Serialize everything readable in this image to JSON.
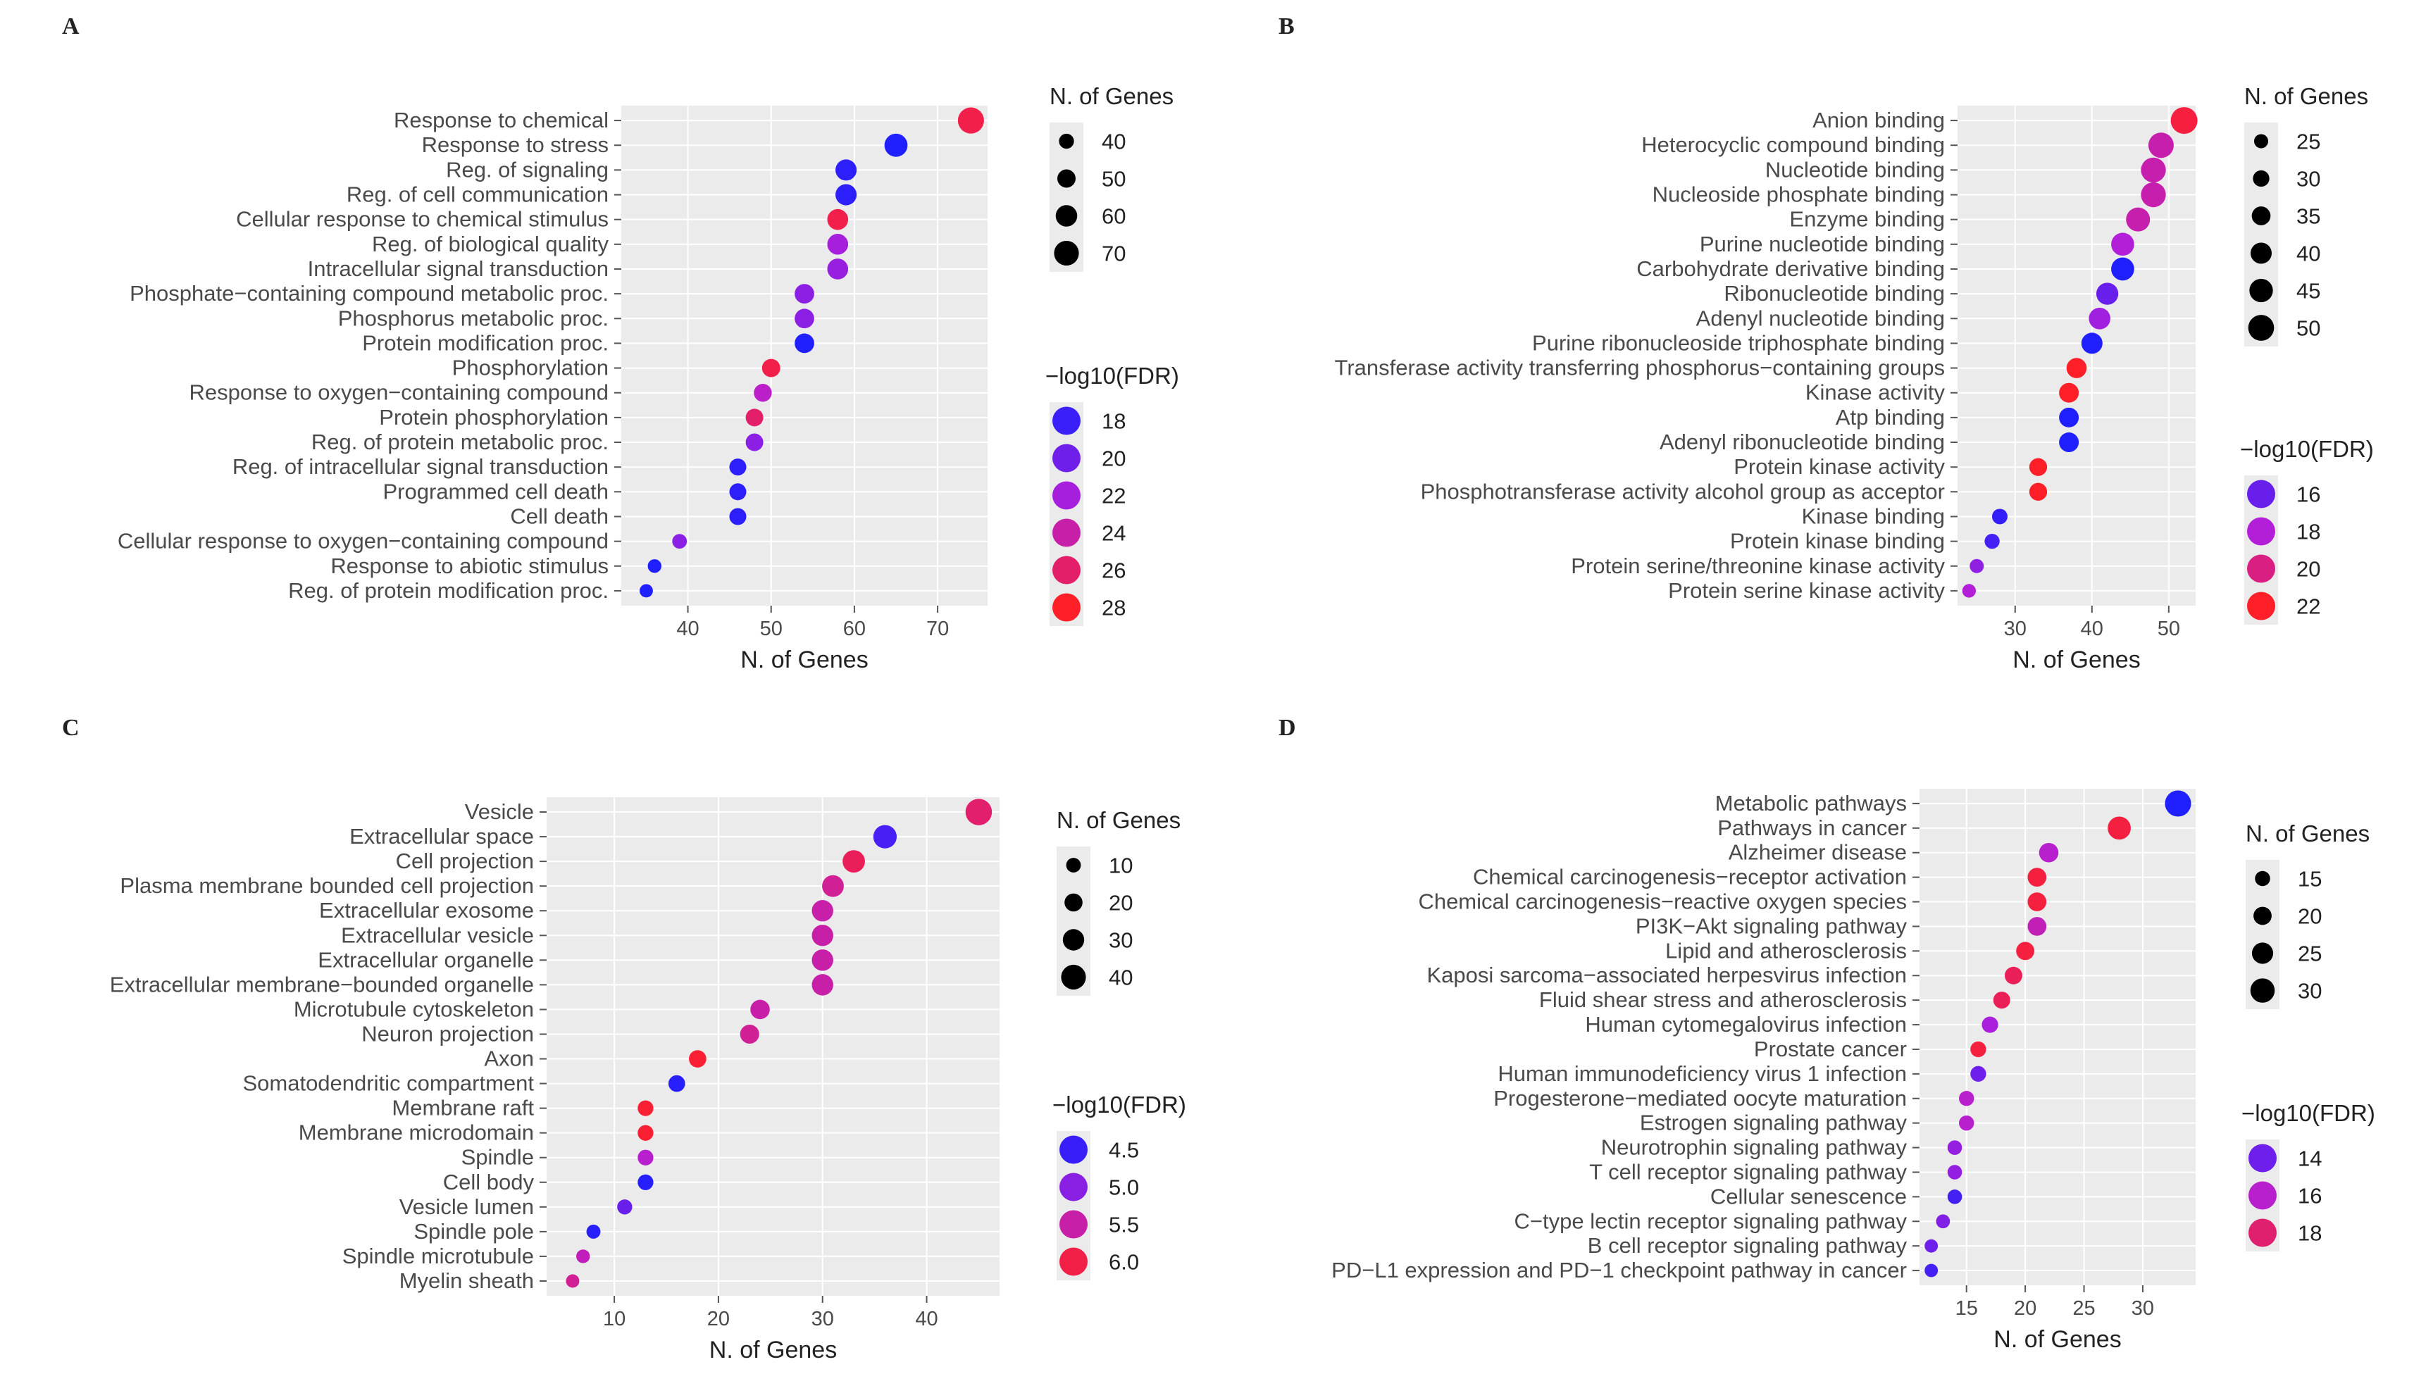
{
  "figure": {
    "legend_titles": {
      "size": "N. of Genes",
      "color": "−log10(FDR)"
    }
  },
  "chart_data": [
    {
      "panel": "A",
      "type": "scatter",
      "xlabel": "N. of Genes",
      "xlim": [
        32,
        76
      ],
      "xticks": [
        40,
        50,
        60,
        70
      ],
      "categories": [
        "Response to chemical",
        "Response to stress",
        "Reg. of signaling",
        "Reg. of cell communication",
        "Cellular response to chemical stimulus",
        "Reg. of biological quality",
        "Intracellular signal transduction",
        "Phosphate−containing compound metabolic proc.",
        "Phosphorus metabolic proc.",
        "Protein modification proc.",
        "Phosphorylation",
        "Response to oxygen−containing compound",
        "Protein phosphorylation",
        "Reg. of protein metabolic proc.",
        "Reg. of intracellular signal transduction",
        "Programmed cell death",
        "Cell death",
        "Cellular response to oxygen−containing compound",
        "Response to abiotic stimulus",
        "Reg. of protein modification proc."
      ],
      "values": [
        74,
        65,
        59,
        59,
        58,
        58,
        58,
        54,
        54,
        54,
        50,
        49,
        48,
        48,
        46,
        46,
        46,
        39,
        36,
        35
      ],
      "log10fdr": [
        27,
        17,
        17.5,
        17.5,
        27,
        22,
        21.5,
        21,
        21,
        17,
        27,
        23,
        26,
        21,
        17.5,
        17.5,
        17.5,
        21,
        17,
        17
      ],
      "size_legend": [
        40,
        50,
        60,
        70
      ],
      "size_range": [
        33,
        76
      ],
      "color_legend": [
        18,
        20,
        22,
        24,
        26,
        28
      ],
      "color_range": [
        17,
        28
      ]
    },
    {
      "panel": "B",
      "type": "scatter",
      "xlabel": "N. of Genes",
      "xlim": [
        22.5,
        53.5
      ],
      "xticks": [
        30,
        40,
        50
      ],
      "categories": [
        "Anion binding",
        "Heterocyclic compound binding",
        "Nucleotide binding",
        "Nucleoside phosphate binding",
        "Enzyme binding",
        "Purine nucleotide binding",
        "Carbohydrate derivative binding",
        "Ribonucleotide binding",
        "Adenyl nucleotide binding",
        "Purine ribonucleoside triphosphate binding",
        "Transferase activity transferring phosphorus−containing groups",
        "Kinase activity",
        "Atp binding",
        "Adenyl ribonucleotide binding",
        "Protein kinase activity",
        "Phosphotransferase activity alcohol group as acceptor",
        "Kinase binding",
        "Protein kinase binding",
        "Protein serine/threonine kinase activity",
        "Protein serine kinase activity"
      ],
      "values": [
        52,
        49,
        48,
        48,
        46,
        44,
        44,
        42,
        41,
        40,
        38,
        37,
        37,
        37,
        33,
        33,
        28,
        27,
        25,
        24
      ],
      "log10fdr": [
        21.5,
        19,
        19,
        19,
        19,
        18,
        14,
        16,
        17.5,
        14,
        22,
        22,
        14,
        14,
        22,
        22,
        14.5,
        15,
        17,
        18
      ],
      "size_legend": [
        25,
        30,
        35,
        40,
        45,
        50
      ],
      "size_range": [
        22,
        52
      ],
      "color_legend": [
        16,
        18,
        20,
        22
      ],
      "color_range": [
        14,
        22
      ]
    },
    {
      "panel": "C",
      "type": "scatter",
      "xlabel": "N. of Genes",
      "xlim": [
        3.5,
        47
      ],
      "xticks": [
        10,
        20,
        30,
        40
      ],
      "categories": [
        "Vesicle",
        "Extracellular space",
        "Cell projection",
        "Plasma membrane bounded cell projection",
        "Extracellular exosome",
        "Extracellular vesicle",
        "Extracellular organelle",
        "Extracellular membrane−bounded organelle",
        "Microtubule cytoskeleton",
        "Neuron projection",
        "Axon",
        "Somatodendritic compartment",
        "Membrane raft",
        "Membrane microdomain",
        "Spindle",
        "Cell body",
        "Vesicle lumen",
        "Spindle pole",
        "Spindle microtubule",
        "Myelin sheath"
      ],
      "values": [
        45,
        36,
        33,
        31,
        30,
        30,
        30,
        30,
        24,
        23,
        18,
        16,
        13,
        13,
        13,
        13,
        11,
        8,
        7,
        6
      ],
      "log10fdr": [
        5.8,
        4.6,
        5.9,
        5.6,
        5.5,
        5.5,
        5.5,
        5.5,
        5.5,
        5.6,
        6.1,
        4.4,
        6.1,
        6.1,
        5.3,
        4.4,
        4.8,
        4.4,
        5.4,
        5.6
      ],
      "size_legend": [
        10,
        20,
        30,
        40
      ],
      "size_range": [
        4,
        46
      ],
      "color_legend": [
        4.5,
        5.0,
        5.5,
        6.0
      ],
      "color_range": [
        4.35,
        6.15
      ]
    },
    {
      "panel": "D",
      "type": "scatter",
      "xlabel": "N. of Genes",
      "xlim": [
        11,
        34.5
      ],
      "xticks": [
        15,
        20,
        25,
        30
      ],
      "categories": [
        "Metabolic pathways",
        "Pathways in cancer",
        "Alzheimer disease",
        "Chemical carcinogenesis−receptor activation",
        "Chemical carcinogenesis−reactive oxygen species",
        "PI3K−Akt signaling pathway",
        "Lipid and atherosclerosis",
        "Kaposi sarcoma−associated herpesvirus infection",
        "Fluid shear stress and atherosclerosis",
        "Human cytomegalovirus infection",
        "Prostate cancer",
        "Human immunodeficiency virus 1 infection",
        "Progesterone−mediated oocyte maturation",
        "Estrogen signaling pathway",
        "Neurotrophin signaling pathway",
        "T cell receptor signaling pathway",
        "Cellular senescence",
        "C−type lectin receptor signaling pathway",
        "B cell receptor signaling pathway",
        "PD−L1 expression and PD−1 checkpoint pathway in cancer"
      ],
      "values": [
        33,
        28,
        22,
        21,
        21,
        21,
        20,
        19,
        18,
        17,
        16,
        16,
        15,
        15,
        14,
        14,
        14,
        13,
        12,
        12
      ],
      "log10fdr": [
        12,
        19,
        16,
        19,
        19,
        16.5,
        19,
        18.5,
        18.5,
        15.5,
        19,
        14,
        16,
        16,
        15,
        15,
        13,
        14.5,
        14,
        13
      ],
      "size_legend": [
        15,
        20,
        25,
        30
      ],
      "size_range": [
        11,
        34
      ],
      "color_legend": [
        14,
        16,
        18
      ],
      "color_range": [
        12,
        19.5
      ]
    }
  ]
}
